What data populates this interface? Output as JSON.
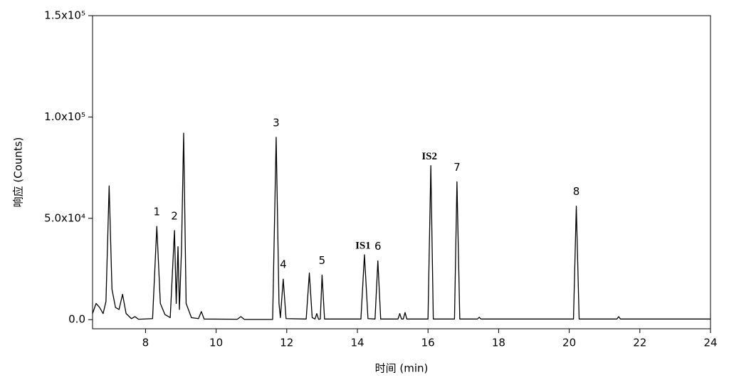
{
  "chart_data": {
    "type": "line",
    "x_label": "时间 (min)",
    "y_label": "响应 (Counts)",
    "x": [
      6.5,
      6.6,
      6.7,
      6.8,
      6.88,
      6.97,
      7.05,
      7.15,
      7.25,
      7.35,
      7.45,
      7.6,
      7.7,
      7.8,
      8.2,
      8.32,
      8.42,
      8.55,
      8.7,
      8.82,
      8.87,
      8.92,
      8.96,
      9.02,
      9.08,
      9.15,
      9.3,
      9.5,
      9.58,
      9.66,
      10.6,
      10.7,
      10.8,
      11.6,
      11.7,
      11.78,
      11.82,
      11.9,
      11.98,
      12.55,
      12.64,
      12.72,
      12.8,
      12.85,
      12.9,
      12.95,
      13.0,
      13.07,
      14.1,
      14.2,
      14.3,
      14.5,
      14.58,
      14.66,
      15.15,
      15.2,
      15.25,
      15.3,
      15.35,
      15.4,
      16.0,
      16.08,
      16.15,
      16.75,
      16.82,
      16.9,
      17.4,
      17.45,
      17.5,
      20.12,
      20.2,
      20.28,
      21.35,
      21.4,
      21.45,
      24
    ],
    "series": [
      {
        "color": "#000000",
        "values": [
          3000,
          8000,
          6000,
          3000,
          9000,
          66000,
          15000,
          6000,
          5000,
          12500,
          3000,
          500,
          1500,
          200,
          500,
          46000,
          8000,
          2500,
          1000,
          44000,
          8000,
          36000,
          5000,
          35000,
          92000,
          8000,
          1000,
          500,
          4000,
          300,
          200,
          1500,
          100,
          100,
          90000,
          8000,
          1000,
          20000,
          500,
          300,
          23000,
          1000,
          300,
          3000,
          200,
          300,
          22000,
          300,
          300,
          32000,
          500,
          300,
          29000,
          300,
          300,
          3000,
          300,
          300,
          3500,
          300,
          300,
          76000,
          300,
          300,
          68000,
          300,
          300,
          1200,
          300,
          300,
          56000,
          300,
          300,
          1500,
          300,
          300
        ]
      }
    ],
    "annotations": [
      {
        "text": "1",
        "x": 8.32
      },
      {
        "text": "2",
        "x": 8.82
      },
      {
        "text": "3",
        "x": 11.7
      },
      {
        "text": "4",
        "x": 11.9
      },
      {
        "text": "5",
        "x": 13.0
      },
      {
        "text": "IS1",
        "x": 14.2
      },
      {
        "text": "6",
        "x": 14.58
      },
      {
        "text": "IS2",
        "x": 16.08
      },
      {
        "text": "7",
        "x": 16.82
      },
      {
        "text": "8",
        "x": 20.2
      }
    ],
    "xlim": [
      6.5,
      24
    ],
    "ylim": [
      -4500,
      150000
    ],
    "xticks": [
      8,
      10,
      12,
      14,
      16,
      18,
      20,
      22,
      24
    ],
    "yticks": [
      {
        "value": 0,
        "label": "0.0"
      },
      {
        "value": 50000,
        "label": "5.0x10⁴"
      },
      {
        "value": 100000,
        "label": "1.0x10⁵"
      },
      {
        "value": 150000,
        "label": "1.5x10⁵"
      }
    ]
  }
}
